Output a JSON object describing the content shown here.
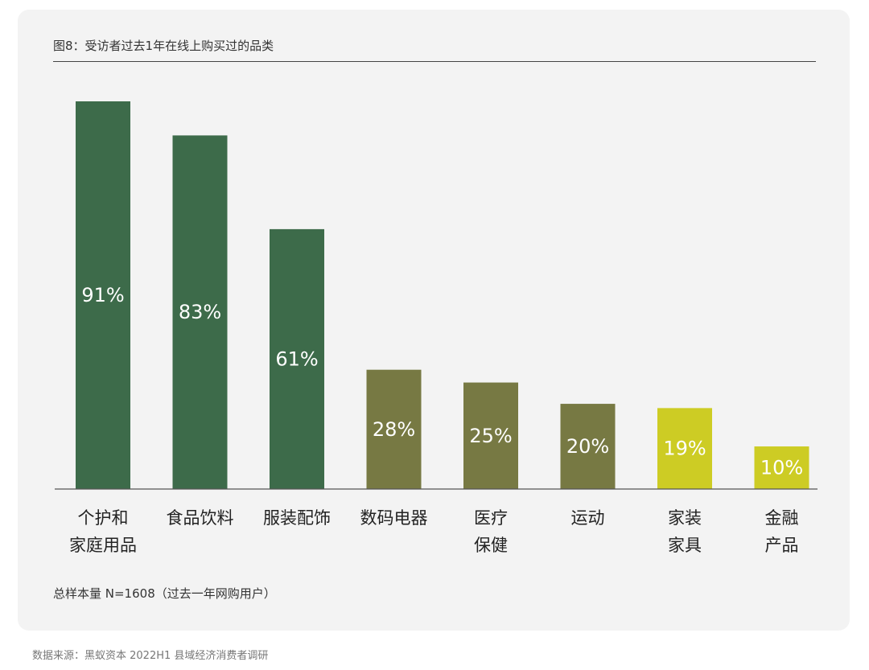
{
  "title": "图8：受访者过去1年在线上购买过的品类",
  "footnote": "总样本量 N=1608（过去一年网购用户）",
  "source": "数据来源：黑蚁资本 2022H1 县域经济消费者调研",
  "colors": {
    "dark_green": "#3d6b4a",
    "olive": "#777943",
    "lime": "#cdcc24",
    "baseline": "#555555",
    "label_text": "#ffffff"
  },
  "chart_data": {
    "type": "bar",
    "categories": [
      [
        "个护和",
        "家庭用品"
      ],
      [
        "食品饮料"
      ],
      [
        "服装配饰"
      ],
      [
        "数码电器"
      ],
      [
        "医疗",
        "保健"
      ],
      [
        "运动"
      ],
      [
        "家装",
        "家具"
      ],
      [
        "金融",
        "产品"
      ]
    ],
    "values": [
      91,
      83,
      61,
      28,
      25,
      20,
      19,
      10
    ],
    "data_labels": [
      "91%",
      "83%",
      "61%",
      "28%",
      "25%",
      "20%",
      "19%",
      "10%"
    ],
    "bar_colors": [
      "dark_green",
      "dark_green",
      "dark_green",
      "olive",
      "olive",
      "olive",
      "lime",
      "lime"
    ],
    "unit": "%",
    "ylim": [
      0,
      100
    ],
    "grid": false,
    "legend": "none"
  }
}
